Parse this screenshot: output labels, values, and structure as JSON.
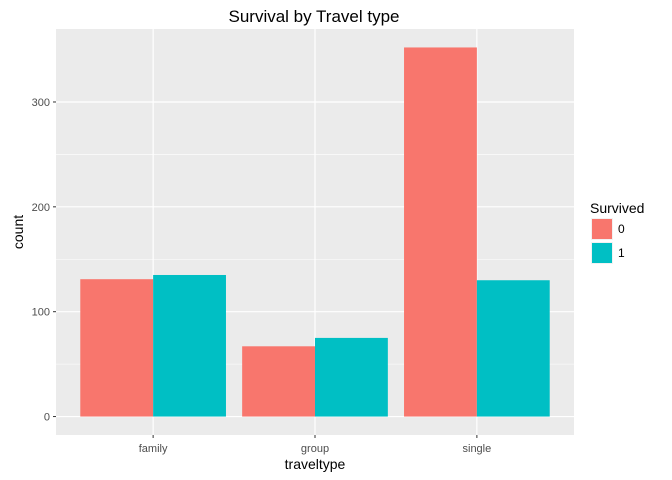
{
  "chart_data": {
    "type": "bar",
    "title": "Survival by Travel type",
    "xlabel": "traveltype",
    "ylabel": "count",
    "categories": [
      "family",
      "group",
      "single"
    ],
    "series": [
      {
        "name": "0",
        "values": [
          131,
          67,
          352
        ],
        "color": "#F8766D"
      },
      {
        "name": "1",
        "values": [
          135,
          75,
          130
        ],
        "color": "#00BFC4"
      }
    ],
    "ylim": [
      -17.6,
      369.6
    ],
    "yticks": [
      0,
      100,
      200,
      300
    ],
    "legend": {
      "title": "Survived",
      "placement": "right"
    },
    "grid": true,
    "panel_background": "#EBEBEB",
    "grid_color": "#FFFFFF"
  }
}
